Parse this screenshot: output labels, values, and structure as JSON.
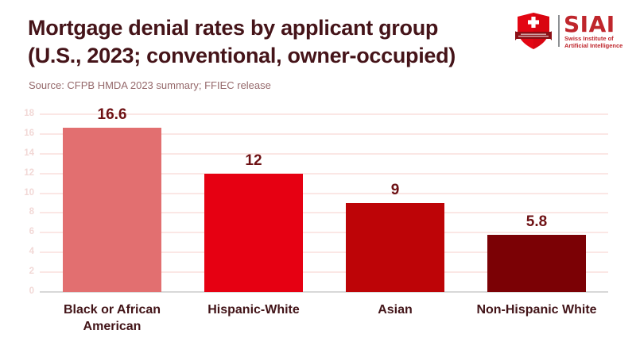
{
  "header": {
    "title_line1": "Mortgage denial rates by applicant group",
    "title_line2": "(U.S., 2023; conventional, owner-occupied)",
    "source": "Source: CFPB HMDA 2023 summary; FFIEC release"
  },
  "logo": {
    "brand": "SIAI",
    "tagline_line1": "Swiss Institute of",
    "tagline_line2": "Artificial Intelligence",
    "brand_color": "#bf262c",
    "shield_red": "#e30613",
    "ribbon_red": "#8c1016"
  },
  "colors": {
    "background": "#ffffff",
    "title": "#451419",
    "source": "#95696b",
    "value_label": "#6e1114",
    "category_label": "#421418",
    "gridline": "#fbe7e5",
    "baseline": "#d8d8d8",
    "tick_label": "#f2d8d6"
  },
  "chart_data": {
    "type": "bar",
    "title": "Mortgage denial rates by applicant group (U.S., 2023; conventional, owner-occupied)",
    "categories": [
      "Black or African American",
      "Hispanic-White",
      "Asian",
      "Non-Hispanic White"
    ],
    "values": [
      16.6,
      12,
      9,
      5.8
    ],
    "value_labels": [
      "16.6",
      "12",
      "9",
      "5.8"
    ],
    "bar_colors": [
      "#e26f70",
      "#e60012",
      "#bd0407",
      "#7b0105"
    ],
    "xlabel": "",
    "ylabel": "",
    "ylim": [
      0,
      18
    ],
    "ytick_step": 2,
    "yticks": [
      0,
      2,
      4,
      6,
      8,
      10,
      12,
      14,
      16,
      18
    ],
    "grid": true,
    "legend": false,
    "source": "Source: CFPB HMDA 2023 summary; FFIEC release"
  }
}
